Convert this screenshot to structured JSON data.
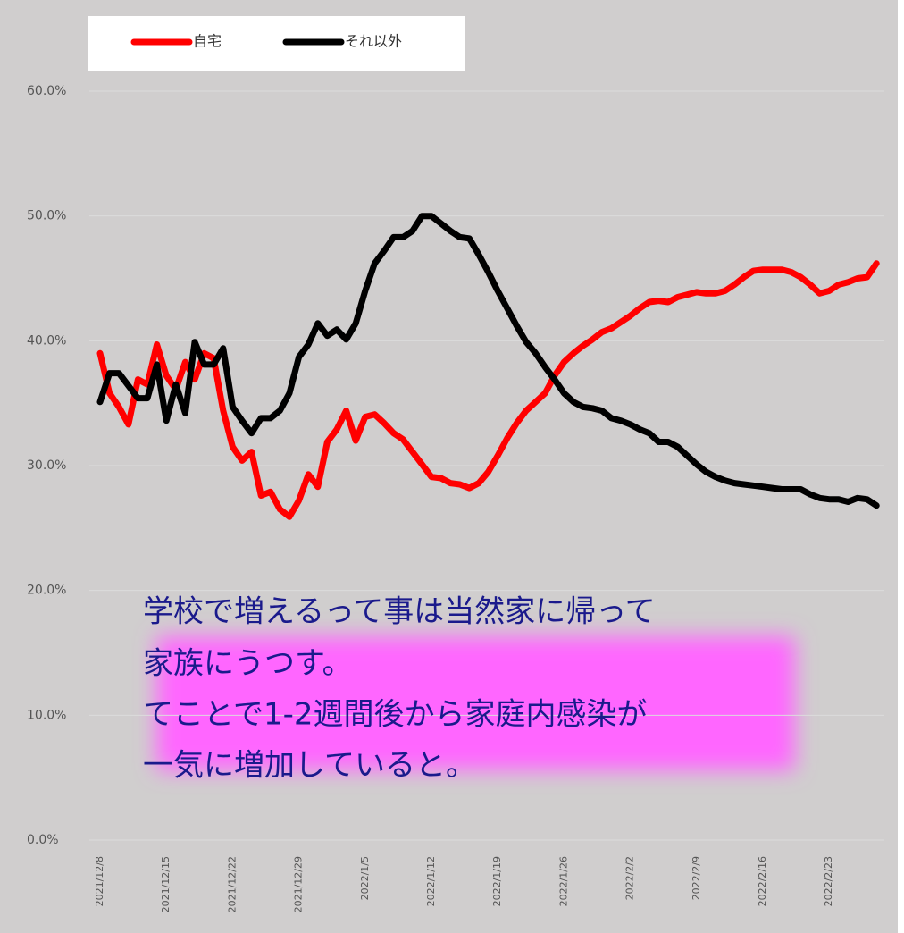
{
  "chart_data": {
    "type": "line",
    "categories": [
      "2021/12/8",
      null,
      null,
      null,
      null,
      null,
      null,
      "2021/12/15",
      null,
      null,
      null,
      null,
      null,
      null,
      "2021/12/22",
      null,
      null,
      null,
      null,
      null,
      null,
      "2021/12/29",
      null,
      null,
      null,
      null,
      null,
      null,
      "2022/1/5",
      null,
      null,
      null,
      null,
      null,
      null,
      "2022/1/12",
      null,
      null,
      null,
      null,
      null,
      null,
      "2022/1/19",
      null,
      null,
      null,
      null,
      null,
      null,
      "2022/1/26",
      null,
      null,
      null,
      null,
      null,
      null,
      "2022/2/2",
      null,
      null,
      null,
      null,
      null,
      null,
      "2022/2/9",
      null,
      null,
      null,
      null,
      null,
      null,
      "2022/2/16",
      null,
      null,
      null,
      null,
      null,
      null,
      "2022/2/23",
      null,
      null,
      null,
      null,
      null
    ],
    "series": [
      {
        "name": "自宅",
        "color": "#ff0000",
        "values": [
          39.0,
          35.8,
          34.7,
          33.3,
          36.9,
          36.5,
          39.7,
          37.2,
          36.1,
          38.3,
          36.9,
          39.0,
          38.6,
          34.4,
          31.5,
          30.4,
          31.1,
          27.6,
          27.9,
          26.5,
          25.9,
          27.2,
          29.3,
          28.3,
          31.9,
          32.9,
          34.4,
          32.0,
          33.9,
          34.1,
          33.4,
          32.6,
          32.1,
          31.1,
          30.1,
          29.1,
          29.0,
          28.6,
          28.5,
          28.2,
          28.6,
          29.5,
          30.8,
          32.2,
          33.4,
          34.4,
          35.1,
          35.8,
          37.2,
          38.3,
          39.0,
          39.6,
          40.1,
          40.7,
          41.0,
          41.5,
          42.0,
          42.6,
          43.1,
          43.2,
          43.1,
          43.5,
          43.7,
          43.9,
          43.8,
          43.8,
          44.0,
          44.5,
          45.1,
          45.6,
          45.7,
          45.7,
          45.7,
          45.5,
          45.1,
          44.5,
          43.8,
          44.0,
          44.5,
          44.7,
          45.0,
          45.1,
          46.2
        ]
      },
      {
        "name": "それ以外",
        "color": "#000000",
        "values": [
          35.1,
          37.4,
          37.4,
          36.4,
          35.4,
          35.4,
          38.1,
          33.6,
          36.5,
          34.2,
          39.9,
          38.1,
          38.1,
          39.4,
          34.7,
          33.6,
          32.6,
          33.8,
          33.8,
          34.4,
          35.8,
          38.7,
          39.7,
          41.4,
          40.4,
          40.9,
          40.1,
          41.4,
          44.0,
          46.2,
          47.2,
          48.3,
          48.3,
          48.8,
          50.0,
          50.0,
          49.4,
          48.8,
          48.3,
          48.2,
          46.9,
          45.5,
          44.0,
          42.6,
          41.2,
          39.9,
          39.0,
          37.9,
          36.9,
          35.8,
          35.1,
          34.7,
          34.6,
          34.4,
          33.8,
          33.6,
          33.3,
          32.9,
          32.6,
          31.9,
          31.9,
          31.5,
          30.8,
          30.1,
          29.5,
          29.1,
          28.8,
          28.6,
          28.5,
          28.4,
          28.3,
          28.2,
          28.1,
          28.1,
          28.1,
          27.7,
          27.4,
          27.3,
          27.3,
          27.1,
          27.4,
          27.3,
          26.8
        ]
      }
    ],
    "ylim": [
      0,
      60
    ],
    "yticks": [
      {
        "value": 0,
        "label": "0.0%"
      },
      {
        "value": 10,
        "label": "10.0%"
      },
      {
        "value": 20,
        "label": "20.0%"
      },
      {
        "value": 30,
        "label": "30.0%"
      },
      {
        "value": 40,
        "label": "40.0%"
      },
      {
        "value": 50,
        "label": "50.0%"
      },
      {
        "value": 60,
        "label": "60.0%"
      }
    ],
    "grid": true,
    "legend": "top",
    "annotation": [
      "学校で増えるって事は当然家に帰って",
      "家族にうつす。",
      "てことで1-2週間後から家庭内感染が",
      "一気に増加していると。"
    ]
  }
}
